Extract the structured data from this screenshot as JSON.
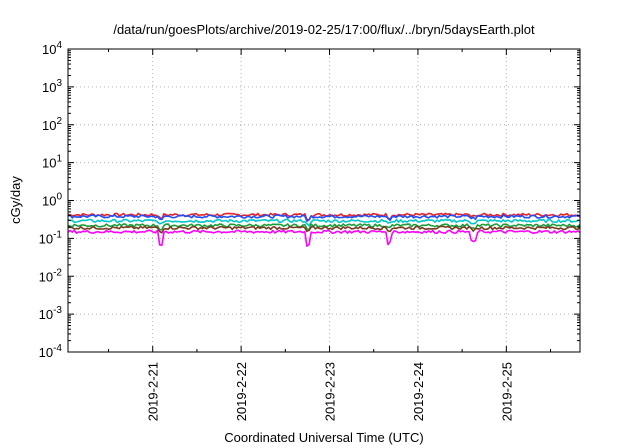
{
  "chart_data": {
    "type": "line",
    "title": "/data/run/goesPlots/archive/2019-02-25/17:00/flux/../bryn/5daysEarth.plot",
    "xlabel": "Coordinated Universal Time (UTC)",
    "ylabel": "cGy/day",
    "yscale": "log",
    "ylim": [
      0.0001,
      10000
    ],
    "xlim": [
      "2019-02-20T01:00",
      "2019-02-25T20:00"
    ],
    "x_ticks": [
      "2019-2-21",
      "2019-2-22",
      "2019-2-23",
      "2019-2-24",
      "2019-2-25"
    ],
    "y_ticks": [
      {
        "base": "10",
        "exp": "4"
      },
      {
        "base": "10",
        "exp": "3"
      },
      {
        "base": "10",
        "exp": "2"
      },
      {
        "base": "10",
        "exp": "1"
      },
      {
        "base": "10",
        "exp": "0"
      },
      {
        "base": "10",
        "exp": "-1"
      },
      {
        "base": "10",
        "exp": "-2"
      },
      {
        "base": "10",
        "exp": "-3"
      },
      {
        "base": "10",
        "exp": "-4"
      }
    ],
    "grid": true,
    "legend": "none",
    "series": [
      {
        "color": "#e8202a",
        "level": 0.42
      },
      {
        "color": "#1f4fff",
        "level": 0.38
      },
      {
        "color": "#00c8c8",
        "level": 0.29
      },
      {
        "color": "#1a9e3a",
        "level": 0.22
      },
      {
        "color": "#7a3a20",
        "level": 0.19
      },
      {
        "color": "#ff00ff",
        "level": 0.15
      }
    ],
    "dips": [
      {
        "date": "2019-02-21T02:00",
        "factor": 0.45
      },
      {
        "date": "2019-02-22T18:00",
        "factor": 0.45
      },
      {
        "date": "2019-02-23T16:00",
        "factor": 0.5
      },
      {
        "date": "2019-02-24T15:00",
        "factor": 0.55
      }
    ]
  }
}
